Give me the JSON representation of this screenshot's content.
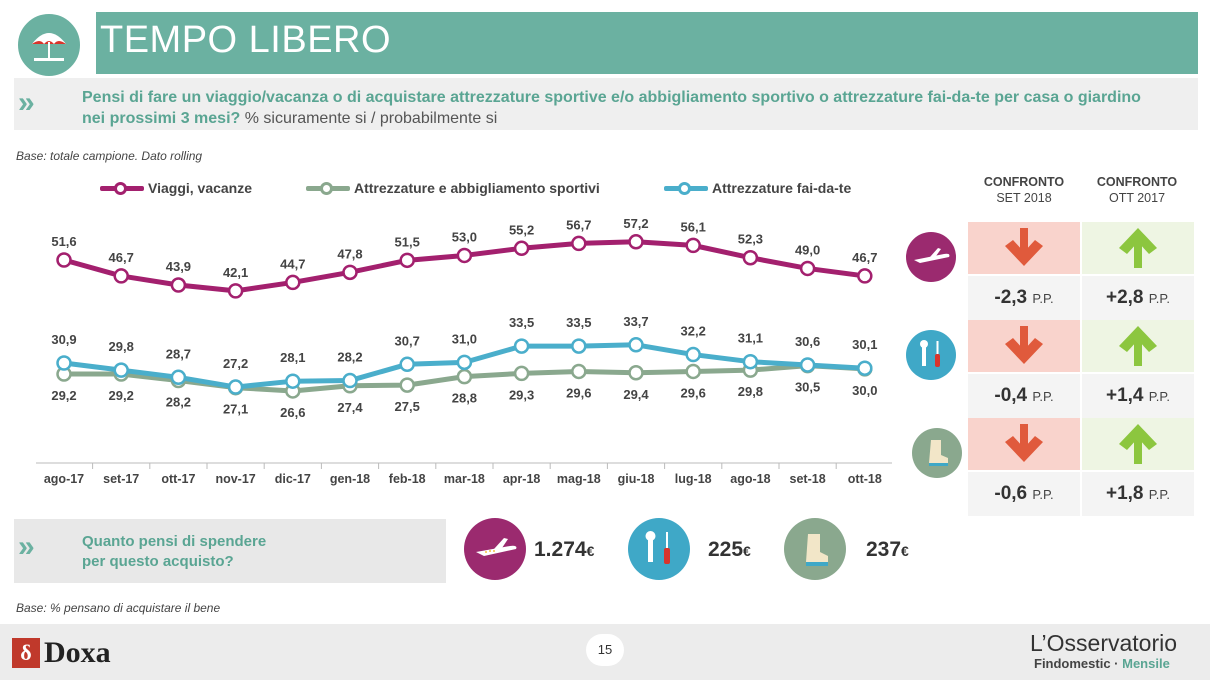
{
  "header": {
    "title": "TEMPO LIBERO",
    "question": "Pensi di fare un viaggio/vacanza o di acquistare attrezzature sportive e/o abbigliamento sportivo o attrezzature fai-da-te per casa o giardino nei prossimi 3 mesi?",
    "question_sub": "% sicuramente si / probabilmente si"
  },
  "base_note": "Base: totale campione. Dato rolling",
  "base_note2": "Base: % pensano di acquistare il bene",
  "chart_data": {
    "type": "line",
    "categories": [
      "ago-17",
      "set-17",
      "ott-17",
      "nov-17",
      "dic-17",
      "gen-18",
      "feb-18",
      "mar-18",
      "apr-18",
      "mag-18",
      "giu-18",
      "lug-18",
      "ago-18",
      "set-18",
      "ott-18"
    ],
    "series": [
      {
        "name": "Viaggi, vacanze",
        "color": "#a3206e",
        "values": [
          51.6,
          46.7,
          43.9,
          42.1,
          44.7,
          47.8,
          51.5,
          53.0,
          55.2,
          56.7,
          57.2,
          56.1,
          52.3,
          49.0,
          46.7
        ],
        "labels": [
          "51,6",
          "46,7",
          "43,9",
          "42,1",
          "44,7",
          "47,8",
          "51,5",
          "53,0",
          "55,2",
          "56,7",
          "57,2",
          "56,1",
          "52,3",
          "49,0",
          "46,7"
        ]
      },
      {
        "name": "Attrezzature e abbigliamento sportivi",
        "color": "#8aa88e",
        "values": [
          29.2,
          29.2,
          28.2,
          27.1,
          26.6,
          27.4,
          27.5,
          28.8,
          29.3,
          29.6,
          29.4,
          29.6,
          29.8,
          30.5,
          30.0
        ],
        "labels": [
          "29,2",
          "29,2",
          "28,2",
          "27,1",
          "26,6",
          "27,4",
          "27,5",
          "28,8",
          "29,3",
          "29,6",
          "29,4",
          "29,6",
          "29,8",
          "30,5",
          "30,0"
        ]
      },
      {
        "name": "Attrezzature fai-da-te",
        "color": "#4aaecb",
        "values": [
          30.9,
          29.8,
          28.7,
          27.2,
          28.1,
          28.2,
          30.7,
          31.0,
          33.5,
          33.5,
          33.7,
          32.2,
          31.1,
          30.6,
          30.1
        ],
        "labels": [
          "30,9",
          "29,8",
          "28,7",
          "27,2",
          "28,1",
          "28,2",
          "30,7",
          "31,0",
          "33,5",
          "33,5",
          "33,7",
          "32,2",
          "31,1",
          "30,6",
          "30,1"
        ]
      }
    ]
  },
  "comparison": {
    "head1_bold": "CONFRONTO",
    "head1_sub": "SET 2018",
    "head2_bold": "CONFRONTO",
    "head2_sub": "OTT 2017",
    "unit": "P.P.",
    "rows": [
      {
        "icon": "airplane-icon",
        "vs_set": "-2,3",
        "vs_ott": "+2,8"
      },
      {
        "icon": "tools-icon",
        "vs_set": "-0,4",
        "vs_ott": "+1,4"
      },
      {
        "icon": "boot-icon",
        "vs_set": "-0,6",
        "vs_ott": "+1,8"
      }
    ]
  },
  "spend": {
    "question_line1": "Quanto pensi di spendere",
    "question_line2": "per questo acquisto?",
    "items": [
      {
        "icon": "airplane-icon",
        "value": "1.274",
        "currency": "€"
      },
      {
        "icon": "tools-icon",
        "value": "225",
        "currency": "€"
      },
      {
        "icon": "boot-icon",
        "value": "237",
        "currency": "€"
      }
    ]
  },
  "footer": {
    "page": "15",
    "brand": "Doxa",
    "observatory_line1": "L’Osservatorio",
    "observatory_line2a": "Findomestic · ",
    "observatory_line2b": "Mensile"
  },
  "colors": {
    "accent": "#6bb1a1",
    "down": "#e05a3c",
    "up": "#8cc63f"
  }
}
